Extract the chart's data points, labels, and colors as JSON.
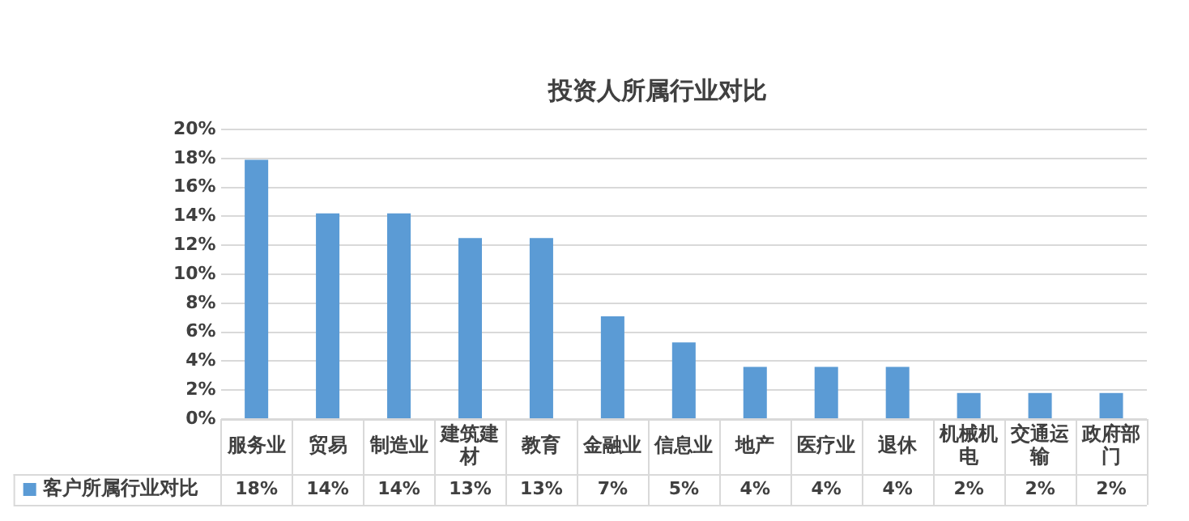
{
  "chart_data": {
    "type": "bar",
    "title": "投资人所属行业对比",
    "categories": [
      "服务业",
      "贸易",
      "制造业",
      "建筑建材",
      "教育",
      "金融业",
      "信息业",
      "地产",
      "医疗业",
      "退休",
      "机械机电",
      "交通运输",
      "政府部门"
    ],
    "series": [
      {
        "name": "客户所属行业对比",
        "color": "#5b9bd5",
        "values": [
          17.9,
          14.2,
          14.2,
          12.5,
          12.5,
          7.1,
          5.3,
          3.6,
          3.6,
          3.6,
          1.8,
          1.8,
          1.8
        ],
        "value_labels": [
          "18%",
          "14%",
          "14%",
          "13%",
          "13%",
          "7%",
          "5%",
          "4%",
          "4%",
          "4%",
          "2%",
          "2%",
          "2%"
        ]
      }
    ],
    "ylim": [
      0,
      20
    ],
    "yticks": [
      {
        "value": 0,
        "label": "0%"
      },
      {
        "value": 2,
        "label": "2%"
      },
      {
        "value": 4,
        "label": "4%"
      },
      {
        "value": 6,
        "label": "6%"
      },
      {
        "value": 8,
        "label": "8%"
      },
      {
        "value": 10,
        "label": "10%"
      },
      {
        "value": 12,
        "label": "12%"
      },
      {
        "value": 14,
        "label": "14%"
      },
      {
        "value": 16,
        "label": "16%"
      },
      {
        "value": 18,
        "label": "18%"
      },
      {
        "value": 20,
        "label": "20%"
      }
    ],
    "grid": "y",
    "legend": "bottom"
  }
}
